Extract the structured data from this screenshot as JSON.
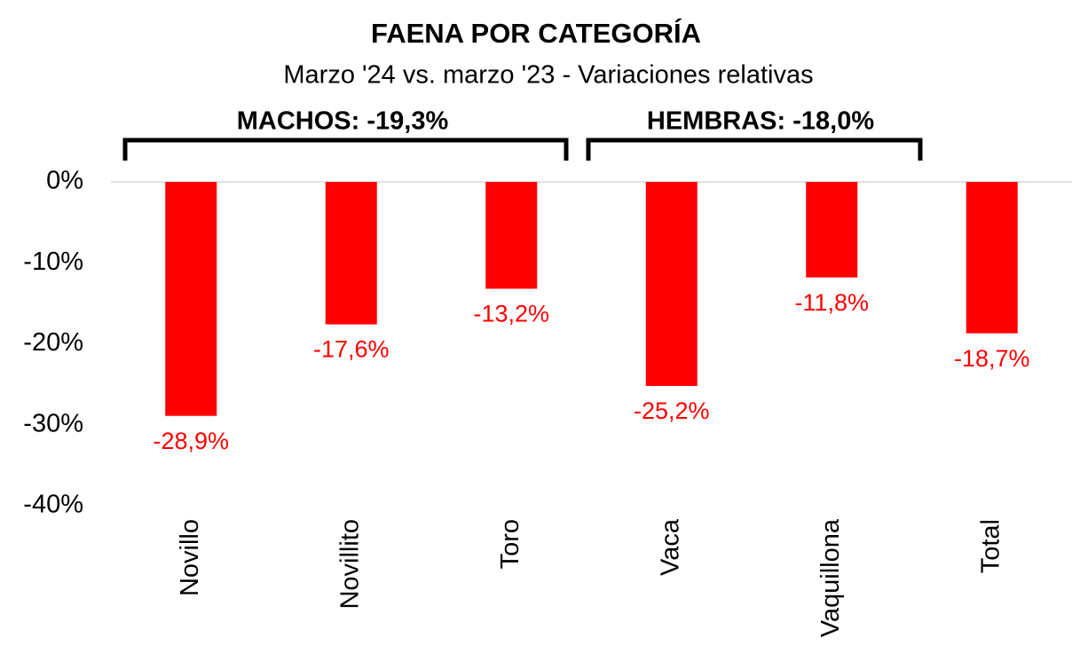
{
  "chart_data": {
    "type": "bar",
    "title": "FAENA POR CATEGORÍA",
    "subtitle": "Marzo '24 vs. marzo '23 - Variaciones relativas",
    "annotations": [
      "MACHOS: -19,3%",
      "HEMBRAS: -18,0%"
    ],
    "categories": [
      "Novillo",
      "Novillito",
      "Toro",
      "Vaca",
      "Vaquillona",
      "Total"
    ],
    "values": [
      -28.9,
      -17.6,
      -13.2,
      -25.2,
      -11.8,
      -18.7
    ],
    "value_labels": [
      "-28,9%",
      "-17,6%",
      "-13,2%",
      "-25,2%",
      "-11,8%",
      "-18,7%"
    ],
    "color": "#ff0000",
    "ylim": [
      -40,
      0
    ],
    "yticks": [
      {
        "value": 0,
        "label": "0%"
      },
      {
        "value": -10,
        "label": "-10%"
      },
      {
        "value": -20,
        "label": "-20%"
      },
      {
        "value": -30,
        "label": "-30%"
      },
      {
        "value": -40,
        "label": "-40%"
      }
    ],
    "grid": false
  }
}
